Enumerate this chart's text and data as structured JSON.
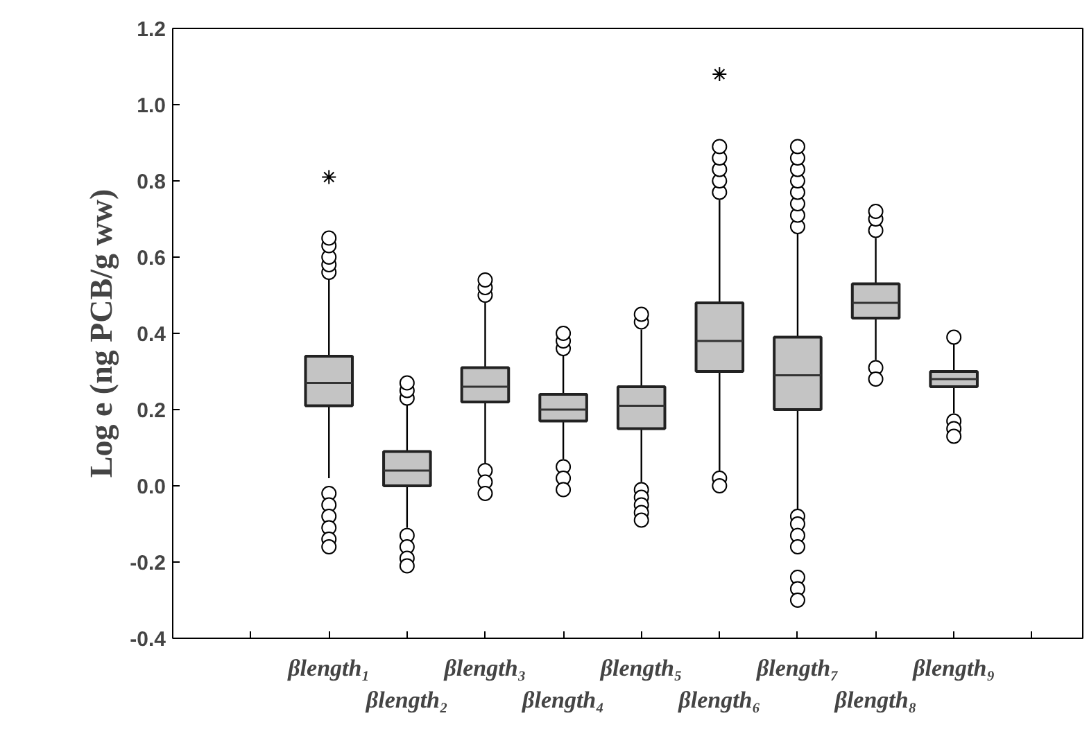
{
  "chart_data": {
    "type": "box",
    "ylabel": "Log e (ng PCB/g ww)",
    "categories": [
      "βlength₁",
      "βlength₂",
      "βlength₃",
      "βlength₄",
      "βlength₅",
      "βlength₆",
      "βlength₇",
      "βlength₈",
      "βlength₉"
    ],
    "ylim": [
      -0.4,
      1.2
    ],
    "yticks": [
      {
        "value": -0.4,
        "label": "-0.4"
      },
      {
        "value": -0.2,
        "label": "-0.2"
      },
      {
        "value": 0.0,
        "label": "0.0"
      },
      {
        "value": 0.2,
        "label": "0.2"
      },
      {
        "value": 0.4,
        "label": "0.4"
      },
      {
        "value": 0.6,
        "label": "0.6"
      },
      {
        "value": 0.8,
        "label": "0.8"
      },
      {
        "value": 1.0,
        "label": "1.0"
      },
      {
        "value": 1.2,
        "label": "1.2"
      }
    ],
    "grid": false,
    "series": [
      {
        "color": "#c4c4c4",
        "boxes": [
          {
            "low": 0.02,
            "q1": 0.21,
            "median": 0.27,
            "q3": 0.34,
            "high": 0.55,
            "outliers": [
              0.56,
              0.58,
              0.6,
              0.63,
              0.65,
              -0.02,
              -0.05,
              -0.08,
              -0.11,
              -0.14,
              -0.16
            ]
          },
          {
            "low": -0.11,
            "q1": 0.0,
            "median": 0.04,
            "q3": 0.09,
            "high": 0.22,
            "outliers": [
              0.23,
              0.25,
              0.27,
              -0.13,
              -0.16,
              -0.19,
              -0.21
            ]
          },
          {
            "low": 0.06,
            "q1": 0.22,
            "median": 0.26,
            "q3": 0.31,
            "high": 0.48,
            "outliers": [
              0.5,
              0.52,
              0.54,
              0.04,
              0.01,
              -0.02
            ]
          },
          {
            "low": 0.07,
            "q1": 0.17,
            "median": 0.2,
            "q3": 0.24,
            "high": 0.35,
            "outliers": [
              0.36,
              0.38,
              0.4,
              0.05,
              0.02,
              -0.01
            ]
          },
          {
            "low": 0.01,
            "q1": 0.15,
            "median": 0.21,
            "q3": 0.26,
            "high": 0.41,
            "outliers": [
              0.43,
              0.45,
              -0.01,
              -0.03,
              -0.05,
              -0.07,
              -0.09
            ]
          },
          {
            "low": 0.04,
            "q1": 0.3,
            "median": 0.38,
            "q3": 0.48,
            "high": 0.75,
            "outliers": [
              0.77,
              0.8,
              0.83,
              0.86,
              0.89,
              0.02,
              0.0
            ]
          },
          {
            "low": -0.06,
            "q1": 0.2,
            "median": 0.29,
            "q3": 0.39,
            "high": 0.66,
            "outliers": [
              0.68,
              0.71,
              0.74,
              0.77,
              0.8,
              0.83,
              0.86,
              0.89,
              -0.08,
              -0.1,
              -0.13,
              -0.16,
              -0.24,
              -0.27,
              -0.3
            ]
          },
          {
            "low": 0.33,
            "q1": 0.44,
            "median": 0.48,
            "q3": 0.53,
            "high": 0.65,
            "outliers": [
              0.67,
              0.7,
              0.72,
              0.31,
              0.28
            ]
          },
          {
            "low": 0.19,
            "q1": 0.26,
            "median": 0.28,
            "q3": 0.3,
            "high": 0.38,
            "outliers": [
              0.39,
              0.17,
              0.15,
              0.13
            ]
          }
        ]
      },
      {
        "type": "scatter",
        "marker": "cross",
        "color": "#000000",
        "x": [
          "βlength₁",
          "βlength₆"
        ],
        "values": [
          0.81,
          1.08
        ]
      }
    ]
  }
}
